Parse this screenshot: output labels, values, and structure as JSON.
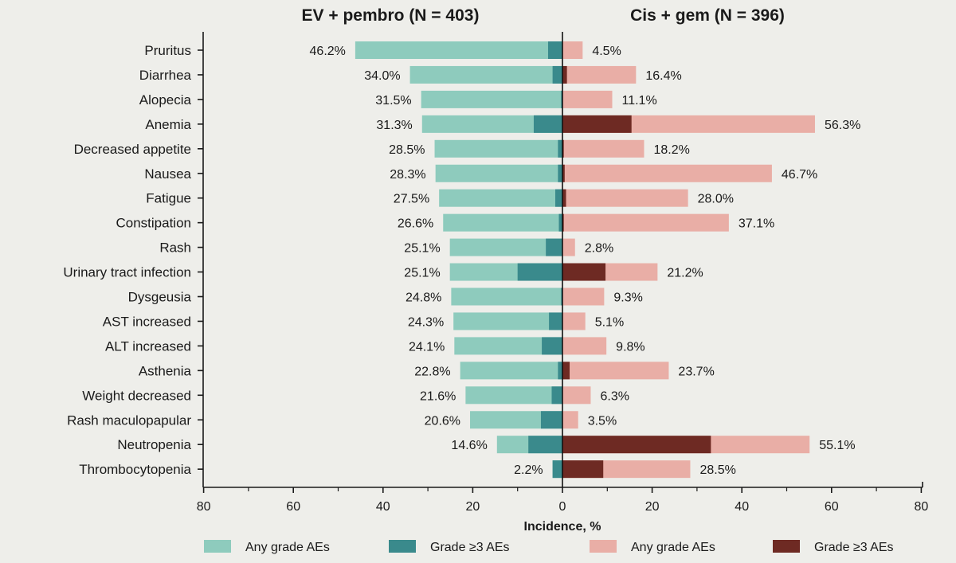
{
  "chart_data": {
    "type": "bar",
    "orientation": "horizontal-butterfly",
    "left_title": "EV + pembro (N = 403)",
    "right_title": "Cis + gem (N = 396)",
    "xlabel": "Incidence, %",
    "xlim": [
      -80,
      80
    ],
    "xticks": [
      "80",
      "60",
      "40",
      "20",
      "0",
      "20",
      "40",
      "60",
      "80"
    ],
    "categories": [
      "Pruritus",
      "Diarrhea",
      "Alopecia",
      "Anemia",
      "Decreased appetite",
      "Nausea",
      "Fatigue",
      "Constipation",
      "Rash",
      "Urinary tract infection",
      "Dysgeusia",
      "AST increased",
      "ALT increased",
      "Asthenia",
      "Weight decreased",
      "Rash maculopapular",
      "Neutropenia",
      "Thrombocytopenia"
    ],
    "series": [
      {
        "name": "Any grade AEs",
        "side": "left",
        "color": "#8ecbbd",
        "values": [
          46.2,
          34.0,
          31.5,
          31.3,
          28.5,
          28.3,
          27.5,
          26.6,
          25.1,
          25.1,
          24.8,
          24.3,
          24.1,
          22.8,
          21.6,
          20.6,
          14.6,
          2.2
        ],
        "labels": [
          "46.2%",
          "34.0%",
          "31.5%",
          "31.3%",
          "28.5%",
          "28.3%",
          "27.5%",
          "26.6%",
          "25.1%",
          "25.1%",
          "24.8%",
          "24.3%",
          "24.1%",
          "22.8%",
          "21.6%",
          "20.6%",
          "14.6%",
          "2.2%"
        ]
      },
      {
        "name": "Grade ≥3 AEs",
        "side": "left",
        "color": "#3a8a8c",
        "values": [
          3.2,
          2.2,
          0.3,
          6.4,
          1.0,
          1.0,
          1.6,
          0.8,
          3.7,
          10.0,
          0.3,
          3.0,
          4.6,
          1.0,
          2.4,
          4.8,
          7.6,
          2.2
        ]
      },
      {
        "name": "Any grade AEs",
        "side": "right",
        "color": "#e9aea6",
        "values": [
          4.5,
          16.4,
          11.1,
          56.3,
          18.2,
          46.7,
          28.0,
          37.1,
          2.8,
          21.2,
          9.3,
          5.1,
          9.8,
          23.7,
          6.3,
          3.5,
          55.1,
          28.5
        ],
        "labels": [
          "4.5%",
          "16.4%",
          "11.1%",
          "56.3%",
          "18.2%",
          "46.7%",
          "28.0%",
          "37.1%",
          "2.8%",
          "21.2%",
          "9.3%",
          "5.1%",
          "9.8%",
          "23.7%",
          "6.3%",
          "3.5%",
          "55.1%",
          "28.5%"
        ]
      },
      {
        "name": "Grade ≥3 AEs",
        "side": "right",
        "color": "#6e2a23",
        "values": [
          0.0,
          1.0,
          0.0,
          15.4,
          0.3,
          0.5,
          0.8,
          0.3,
          0.0,
          9.6,
          0.0,
          0.0,
          0.0,
          1.6,
          0.0,
          0.0,
          33.1,
          9.1
        ]
      }
    ],
    "legend": [
      "Any grade AEs",
      "Grade ≥3 AEs",
      "Any grade AEs",
      "Grade ≥3 AEs"
    ],
    "legend_position": "bottom",
    "grid": false
  }
}
